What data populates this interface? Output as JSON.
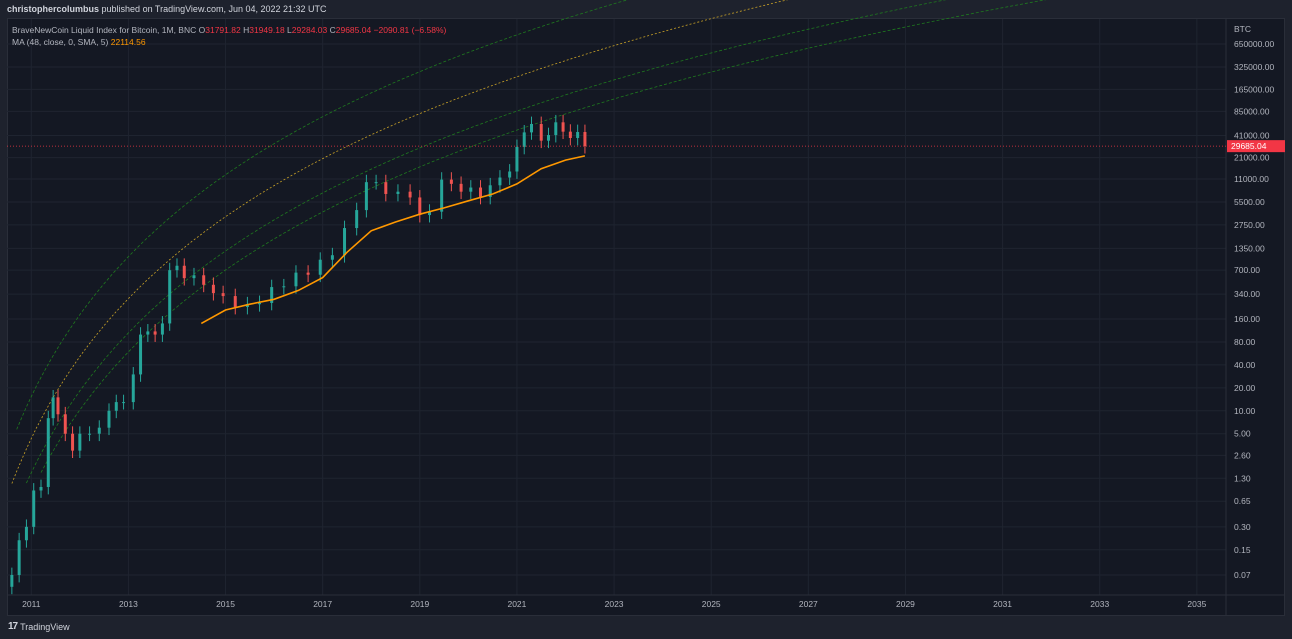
{
  "header": {
    "author": "christophercolumbus",
    "published_text": "published on TradingView.com, Jun 04, 2022 21:32 UTC"
  },
  "legend": {
    "symbol": "BraveNewCoin Liquid Index for Bitcoin, 1M, BNC",
    "o_label": "O",
    "o_value": "31791.82",
    "h_label": "H",
    "h_value": "31949.18",
    "l_label": "L",
    "l_value": "29284.03",
    "c_label": "C",
    "c_value": "29685.04",
    "change": "−2090.81 (−6.58%)",
    "ma_label": "MA (48, close, 0, SMA, 5)",
    "ma_value": "22114.56"
  },
  "footer": {
    "brand": "TradingView",
    "logo_glyph": "17"
  },
  "colors": {
    "up": "#26a69a",
    "down": "#ef5350",
    "ma": "#ff9800",
    "band": "#1f7a1f",
    "mid": "#c9a227",
    "price_line": "#f23645",
    "background": "#141823",
    "text": "#b2b5be"
  },
  "chart_data": {
    "type": "line",
    "scale": "log",
    "currency_label": "BTC",
    "price_label": "29685.04",
    "y_ticks": [
      "650000.00",
      "325000.00",
      "165000.00",
      "85000.00",
      "41000.00",
      "21000.00",
      "11000.00",
      "5500.00",
      "2750.00",
      "1350.00",
      "700.00",
      "340.00",
      "160.00",
      "80.00",
      "40.00",
      "20.00",
      "10.00",
      "5.00",
      "2.60",
      "1.30",
      "0.65",
      "0.30",
      "0.15",
      "0.07"
    ],
    "x_ticks": [
      "2011",
      "2013",
      "2015",
      "2017",
      "2019",
      "2021",
      "2023",
      "2025",
      "2027",
      "2029",
      "2031",
      "2033",
      "2035"
    ],
    "xlim": [
      2010.5,
      2035.6
    ],
    "ylim": [
      0.04,
      1000000
    ],
    "grid": true,
    "series": [
      {
        "type": "candlestick",
        "x": [
          2010.6,
          2010.75,
          2010.9,
          2011.05,
          2011.2,
          2011.35,
          2011.45,
          2011.55,
          2011.7,
          2011.85,
          2012.0,
          2012.2,
          2012.4,
          2012.6,
          2012.75,
          2012.9,
          2013.1,
          2013.25,
          2013.4,
          2013.55,
          2013.7,
          2013.85,
          2014.0,
          2014.15,
          2014.35,
          2014.55,
          2014.75,
          2014.95,
          2015.2,
          2015.45,
          2015.7,
          2015.95,
          2016.2,
          2016.45,
          2016.7,
          2016.95,
          2017.2,
          2017.45,
          2017.7,
          2017.9,
          2018.1,
          2018.3,
          2018.55,
          2018.8,
          2019.0,
          2019.2,
          2019.45,
          2019.65,
          2019.85,
          2020.05,
          2020.25,
          2020.45,
          2020.65,
          2020.85,
          2021.0,
          2021.15,
          2021.3,
          2021.5,
          2021.65,
          2021.8,
          2021.95,
          2022.1,
          2022.25,
          2022.4
        ],
        "close": [
          0.07,
          0.2,
          0.3,
          0.9,
          1.0,
          8.0,
          15.0,
          9.0,
          5.0,
          3.0,
          5.0,
          5.0,
          6.0,
          10.0,
          13.0,
          13.0,
          30.0,
          100.0,
          110.0,
          100.0,
          140.0,
          700.0,
          800.0,
          550.0,
          600.0,
          450.0,
          350.0,
          320.0,
          230.0,
          250.0,
          260.0,
          420.0,
          430.0,
          650.0,
          610.0,
          960.0,
          1100.0,
          2500.0,
          4300.0,
          10000.0,
          10000.0,
          7000.0,
          7500.0,
          6300.0,
          3700.0,
          4100.0,
          10800.0,
          9500.0,
          7500.0,
          8500.0,
          6400.0,
          9100.0,
          11500.0,
          13800.0,
          29000.0,
          45000.0,
          58000.0,
          35000.0,
          41500.0,
          61000.0,
          46000.0,
          38000.0,
          45500.0,
          29685.04
        ]
      },
      {
        "name": "MA (48, close, 0, SMA, 5)",
        "x": [
          2014.5,
          2015.0,
          2015.5,
          2016.0,
          2016.5,
          2017.0,
          2017.5,
          2018.0,
          2018.5,
          2019.0,
          2019.5,
          2020.0,
          2020.5,
          2021.0,
          2021.5,
          2022.0,
          2022.4
        ],
        "values": [
          140,
          210,
          250,
          290,
          380,
          560,
          1200,
          2300,
          3000,
          3800,
          4600,
          5700,
          7000,
          9500,
          15000,
          19500,
          22114.56
        ]
      }
    ]
  }
}
